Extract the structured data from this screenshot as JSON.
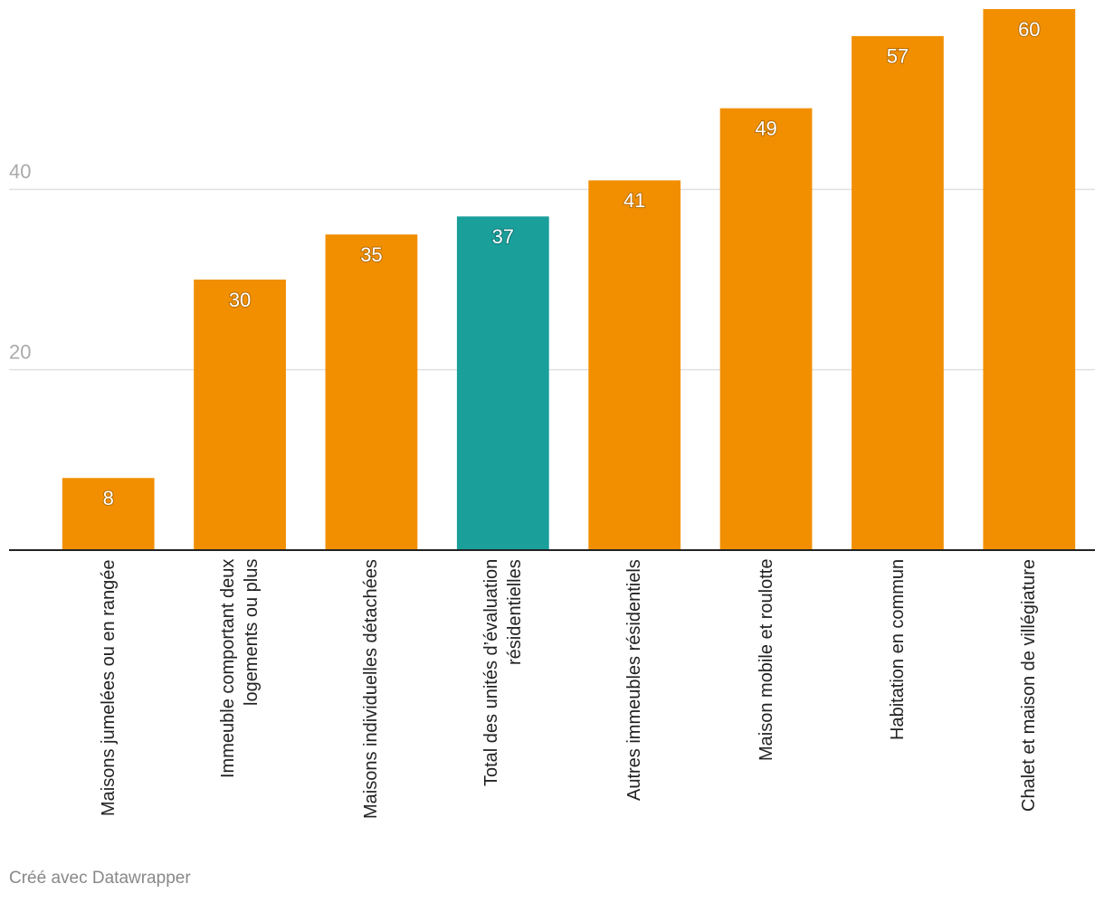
{
  "chart_data": {
    "type": "bar",
    "categories": [
      "Maisons jumelées ou en rangée",
      "Immeuble comportant deux logements ou plus",
      "Maisons individuelles détachées",
      "Total des unités d’évaluation résidentielles",
      "Autres immeubles résidentiels",
      "Maison mobile et roulotte",
      "Habitation en commun",
      "Chalet et maison de villégiature"
    ],
    "values": [
      8,
      30,
      35,
      37,
      41,
      49,
      57,
      60
    ],
    "colors": [
      "#f18f00",
      "#f18f00",
      "#f18f00",
      "#1a9f9b",
      "#f18f00",
      "#f18f00",
      "#f18f00",
      "#f18f00"
    ],
    "ylim": [
      0,
      60
    ],
    "yticks": [
      20,
      40
    ],
    "grid": true,
    "footer": "Créé avec Datawrapper"
  }
}
